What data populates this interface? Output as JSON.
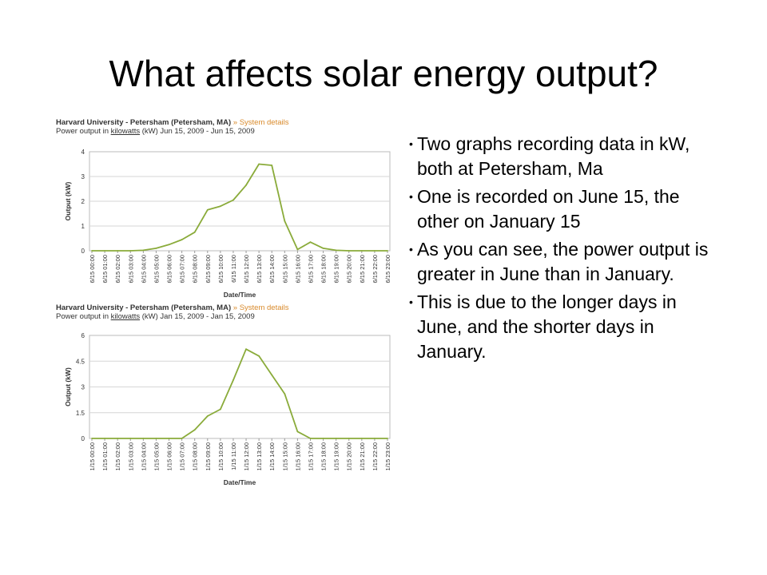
{
  "slide": {
    "title": "What affects solar energy output?"
  },
  "charts": [
    {
      "location": "Harvard University - Petersham (Petersham, MA)",
      "system_details_link": "System details",
      "subtitle_prefix": "Power output in ",
      "unit_link": "kilowatts",
      "subtitle_suffix": " (kW) Jun 15, 2009 - Jun 15, 2009"
    },
    {
      "location": "Harvard University - Petersham (Petersham, MA)",
      "system_details_link": "System details",
      "subtitle_prefix": "Power output in ",
      "unit_link": "kilowatts",
      "subtitle_suffix": " (kW) Jan 15, 2009 - Jan 15, 2009"
    }
  ],
  "chart_data": [
    {
      "type": "line",
      "ylabel": "Output (kW)",
      "xlabel": "Date/Time",
      "ylim": [
        0,
        4
      ],
      "yticks": [
        "0",
        "1",
        "2",
        "3",
        "4"
      ],
      "grid": true,
      "color": "#8aab3a",
      "categories": [
        "6/15 00:00",
        "6/15 01:00",
        "6/15 02:00",
        "6/15 03:00",
        "6/15 04:00",
        "6/15 05:00",
        "6/15 06:00",
        "6/15 07:00",
        "6/15 08:00",
        "6/15 09:00",
        "6/15 10:00",
        "6/15 11:00",
        "6/15 12:00",
        "6/15 13:00",
        "6/15 14:00",
        "6/15 15:00",
        "6/15 16:00",
        "6/15 17:00",
        "6/15 18:00",
        "6/15 19:00",
        "6/15 20:00",
        "6/15 21:00",
        "6/15 22:00",
        "6/15 23:00"
      ],
      "series": [
        {
          "values": [
            0,
            0,
            0,
            0,
            0.02,
            0.1,
            0.25,
            0.45,
            0.75,
            1.65,
            1.8,
            2.05,
            2.65,
            3.5,
            3.45,
            1.2,
            0.05,
            0.35,
            0.1,
            0.02,
            0,
            0,
            0,
            0
          ]
        }
      ]
    },
    {
      "type": "line",
      "ylabel": "Output (kW)",
      "xlabel": "Date/Time",
      "ylim": [
        0,
        6
      ],
      "yticks": [
        "0",
        "1.5",
        "3",
        "4.5",
        "6"
      ],
      "grid": true,
      "color": "#8aab3a",
      "categories": [
        "1/15 00:00",
        "1/15 01:00",
        "1/15 02:00",
        "1/15 03:00",
        "1/15 04:00",
        "1/15 05:00",
        "1/15 06:00",
        "1/15 07:00",
        "1/15 08:00",
        "1/15 09:00",
        "1/15 10:00",
        "1/15 11:00",
        "1/15 12:00",
        "1/15 13:00",
        "1/15 14:00",
        "1/15 15:00",
        "1/15 16:00",
        "1/15 17:00",
        "1/15 18:00",
        "1/15 19:00",
        "1/15 20:00",
        "1/15 21:00",
        "1/15 22:00",
        "1/15 23:00"
      ],
      "series": [
        {
          "values": [
            0,
            0,
            0,
            0,
            0,
            0,
            0,
            0,
            0.5,
            1.3,
            1.7,
            3.4,
            5.2,
            4.8,
            3.7,
            2.6,
            0.4,
            0,
            0,
            0,
            0,
            0,
            0,
            0
          ]
        }
      ]
    }
  ],
  "bullets": [
    "Two graphs recording data in kW, both at Petersham, Ma",
    "One is recorded on June 15, the other on January 15",
    "As you can see, the power output is greater in June than in January.",
    "This is due to the longer days in June, and the shorter days in January."
  ],
  "bullet_symbol": "•"
}
